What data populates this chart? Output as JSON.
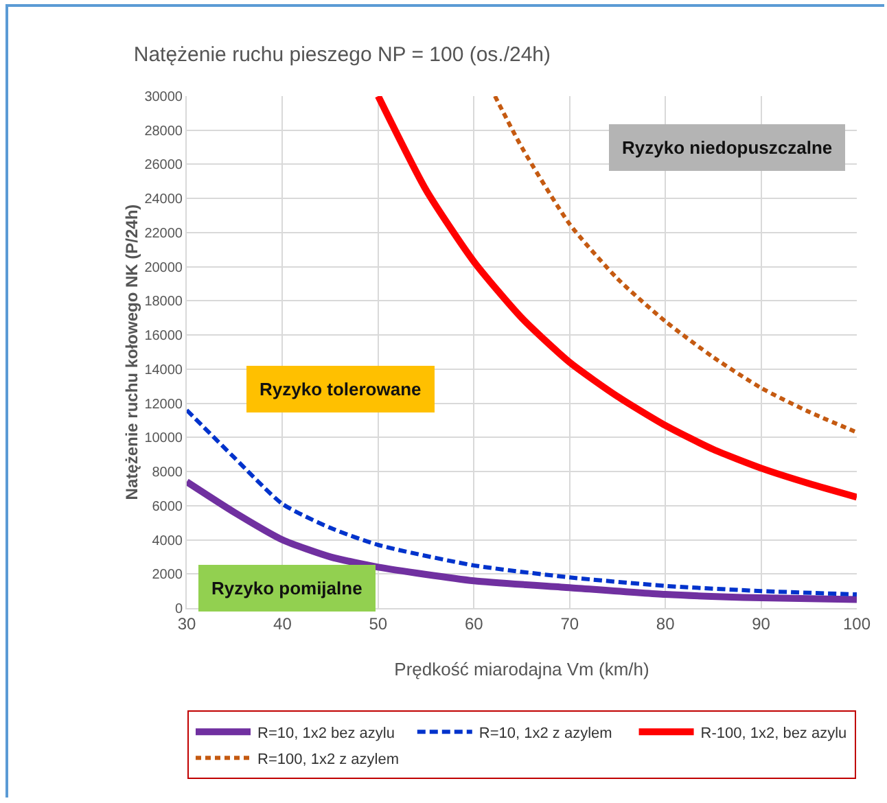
{
  "chart_data": {
    "type": "line",
    "title": "Natężenie ruchu pieszego NP = 100 (os./24h)",
    "xlabel": "Prędkość miarodajna Vm (km/h)",
    "ylabel": "Natężenie ruchu kołowego NK (P/24h)",
    "xlim": [
      30,
      100
    ],
    "xticks": [
      30,
      40,
      50,
      60,
      70,
      80,
      90,
      100
    ],
    "ylim": [
      0,
      30000
    ],
    "yticks": [
      0,
      2000,
      4000,
      6000,
      8000,
      10000,
      12000,
      14000,
      16000,
      18000,
      20000,
      22000,
      24000,
      26000,
      28000,
      30000
    ],
    "grid": true,
    "legend": "bottom",
    "marker": "none",
    "annotations": [
      "Ryzyko niedopuszczalne",
      "Ryzyko tolerowane",
      "Ryzyko pomijalne"
    ],
    "series": [
      {
        "name": "R=10, 1x2 bez azylu",
        "color": "#7030a0",
        "line_style": "solid",
        "x": [
          30,
          35,
          40,
          45,
          50,
          60,
          70,
          80,
          90,
          100
        ],
        "values": [
          7400,
          5600,
          4000,
          3000,
          2400,
          1600,
          1200,
          800,
          600,
          500
        ]
      },
      {
        "name": "R=10, 1x2 z azylem",
        "color": "#0033cc",
        "line_style": "dashed",
        "x": [
          30,
          35,
          40,
          45,
          50,
          60,
          70,
          80,
          90,
          100
        ],
        "values": [
          11600,
          8800,
          6100,
          4700,
          3700,
          2500,
          1800,
          1300,
          1000,
          800
        ]
      },
      {
        "name": "R-100, 1x2, bez azylu",
        "color": "#ff0000",
        "line_style": "solid",
        "x": [
          50,
          55,
          60,
          65,
          70,
          75,
          80,
          85,
          90,
          95,
          100
        ],
        "values": [
          30000,
          24500,
          20300,
          17000,
          14400,
          12400,
          10700,
          9300,
          8200,
          7300,
          6500
        ]
      },
      {
        "name": "R=100, 1x2 z azylem",
        "color": "#c55a11",
        "line_style": "dotted",
        "x": [
          62.2,
          65,
          70,
          75,
          80,
          85,
          90,
          95,
          100
        ],
        "values": [
          30000,
          27000,
          22500,
          19300,
          16800,
          14700,
          12900,
          11500,
          10300
        ]
      }
    ]
  }
}
